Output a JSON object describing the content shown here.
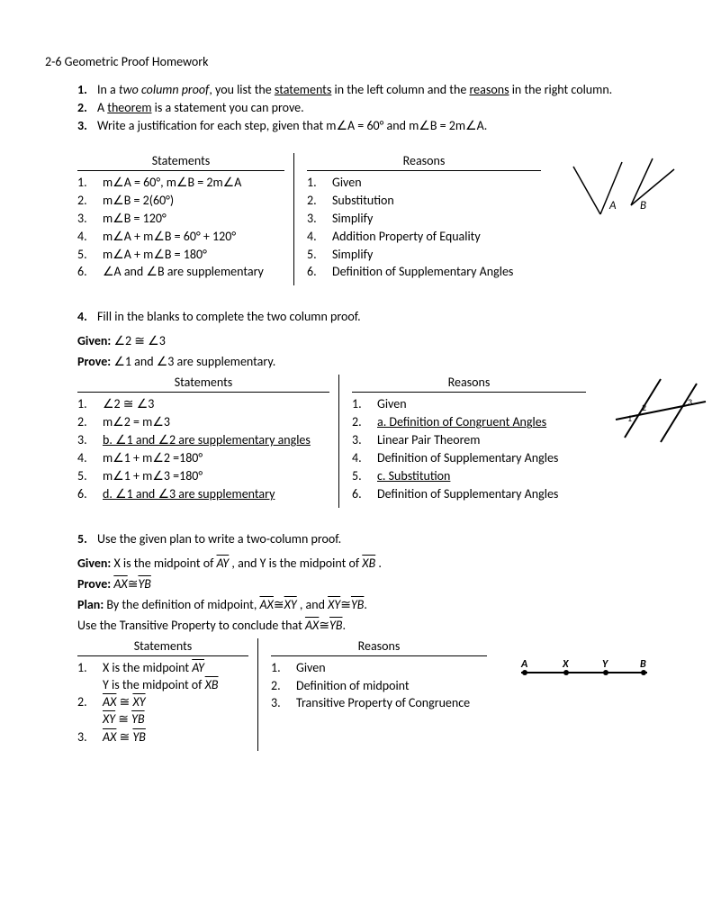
{
  "title": "2-6 Geometric Proof Homework",
  "intro": {
    "items": [
      {
        "num": "1.",
        "html": "In a <span class='i'>two column proof</span>, you list the <span class='u'>statements</span> in the left column and the <span class='u'>reasons</span> in the right column."
      },
      {
        "num": "2.",
        "html": "A <span class='u'>theorem</span> is a statement you can prove."
      },
      {
        "num": "3.",
        "html": "Write a justification for each step, given that m∠A = 60° and m∠B = 2m∠A."
      }
    ]
  },
  "q3": {
    "stmt_h": "Statements",
    "reason_h": "Reasons",
    "rows": [
      {
        "n": "1.",
        "s": "m∠A = 60°, m∠B = 2m∠A",
        "r": "Given"
      },
      {
        "n": "2.",
        "s": "m∠B = 2(60°)",
        "r": "Substitution"
      },
      {
        "n": "3.",
        "s": "m∠B = 120°",
        "r": "Simplify"
      },
      {
        "n": "4.",
        "s": "m∠A + m∠B = 60° + 120°",
        "r": "Addition Property of Equality"
      },
      {
        "n": "5.",
        "s": "m∠A + m∠B = 180°",
        "r": "Simplify"
      },
      {
        "n": "6.",
        "s": "∠A  and ∠B are supplementary",
        "r": "Definition of Supplementary Angles"
      }
    ]
  },
  "q4": {
    "lead_num": "4.",
    "lead": "Fill in the blanks to complete the two column proof.",
    "given_label": "Given:",
    "given": "∠2 ≅ ∠3",
    "prove_label": "Prove:",
    "prove": "∠1 and ∠3 are supplementary.",
    "stmt_h": "Statements",
    "reason_h": "Reasons",
    "rows": [
      {
        "n": "1.",
        "s": "∠2 ≅ ∠3",
        "r": "Given",
        "su": false,
        "ru": false
      },
      {
        "n": "2.",
        "s": "m∠2 = m∠3",
        "r": "a. Definition of Congruent Angles",
        "su": false,
        "ru": true
      },
      {
        "n": "3.",
        "s": "b. ∠1 and ∠2 are supplementary angles",
        "r": "Linear Pair Theorem",
        "su": true,
        "ru": false
      },
      {
        "n": "4.",
        "s": "m∠1 + m∠2 =180°",
        "r": "Definition of Supplementary Angles",
        "su": false,
        "ru": false
      },
      {
        "n": "5.",
        "s": "m∠1 + m∠3 =180°",
        "r": "c. Substitution",
        "su": false,
        "ru": true
      },
      {
        "n": "6.",
        "s": "d. ∠1  and ∠3 are supplementary",
        "r": "Definition of Supplementary Angles",
        "su": true,
        "ru": false
      }
    ]
  },
  "q5": {
    "lead_num": "5.",
    "lead": "Use the given plan to write a two-column proof.",
    "given_label": "Given:",
    "given_html": "X is the midpoint of <span class='overline'>AY</span> , and Y is the midpoint of <span class='overline'>XB</span> .",
    "prove_label": "Prove:",
    "prove_html": "<span class='overline'>AX</span>≅<span class='overline'>YB</span>",
    "plan_label": "Plan:",
    "plan_html": "By the definition of midpoint, <span class='overline'>AX</span>≅<span class='overline'>XY</span> , and <span class='overline'>XY</span>≅<span class='overline'>YB</span>.",
    "plan2_html": "Use the Transitive Property to conclude that <span class='overline'>AX</span>≅<span class='overline'>YB</span>.",
    "stmt_h": "Statements",
    "reason_h": "Reasons",
    "rows": [
      {
        "n": "1.",
        "s_html": "X is the midpoint <span class='overline'>AY</span><br>Y is the midpoint of <span class='overline'>XB</span>",
        "r": "Given"
      },
      {
        "n": "2.",
        "s_html": "<span class='overline'>AX</span> ≅ <span class='overline'>XY</span><br><span class='overline'>XY</span> ≅ <span class='overline'>YB</span>",
        "r": "Definition of midpoint"
      },
      {
        "n": "3.",
        "s_html": "<span class='overline'>AX</span> ≅ <span class='overline'>YB</span>",
        "r": "Transitive Property of Congruence"
      }
    ]
  }
}
